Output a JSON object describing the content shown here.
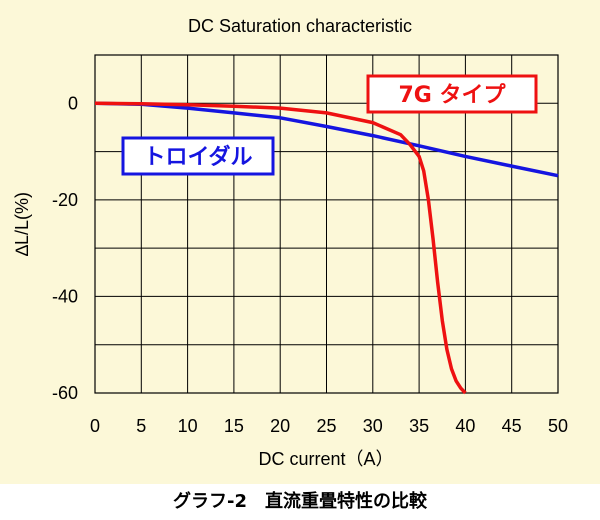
{
  "chart_data": {
    "type": "line",
    "title": "DC Saturation characteristic",
    "xlabel": "DC current（A）",
    "ylabel": "∆L/L(%)",
    "xlim": [
      0,
      50
    ],
    "ylim": [
      -60,
      10
    ],
    "x_ticks": [
      0,
      5,
      10,
      15,
      20,
      25,
      30,
      35,
      40,
      45,
      50
    ],
    "y_ticks": [
      0,
      -20,
      -40,
      -60
    ],
    "grid": true,
    "series": [
      {
        "name": "トロイダル",
        "color": "#1515e0",
        "x": [
          0,
          5,
          10,
          15,
          20,
          25,
          30,
          35,
          40,
          45,
          50
        ],
        "y": [
          0,
          -0.2,
          -1.0,
          -2.0,
          -3.0,
          -4.8,
          -6.7,
          -8.8,
          -11.0,
          -13.0,
          -15.0
        ]
      },
      {
        "name": "7G タイプ",
        "color": "#ee1111",
        "x": [
          0,
          5,
          10,
          15,
          20,
          25,
          30,
          33,
          34,
          35,
          35.5,
          36,
          36.5,
          37,
          37.5,
          38,
          38.5,
          39,
          39.5,
          40
        ],
        "y": [
          0,
          -0.1,
          -0.3,
          -0.6,
          -1.0,
          -2.0,
          -4.0,
          -6.5,
          -8.5,
          -11.0,
          -14.0,
          -20.0,
          -28.0,
          -37.0,
          -45.0,
          -51.0,
          -55.0,
          -57.5,
          -59.0,
          -60.0
        ]
      }
    ]
  },
  "caption": "グラフ-2　直流重畳特性の比較"
}
